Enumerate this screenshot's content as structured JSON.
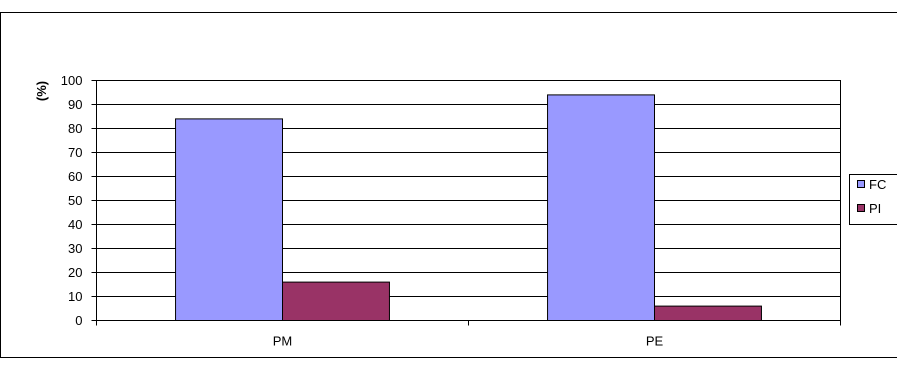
{
  "chart_data": {
    "type": "bar",
    "title": "",
    "xlabel": "",
    "ylabel": "(%)",
    "categories": [
      "PM",
      "PE"
    ],
    "series": [
      {
        "name": "FC",
        "values": [
          84,
          94
        ],
        "color": "#9999ff"
      },
      {
        "name": "PI",
        "values": [
          16,
          6
        ],
        "color": "#993366"
      }
    ],
    "ylim": [
      0,
      100
    ],
    "yticks": [
      "0",
      "10",
      "20",
      "30",
      "40",
      "50",
      "60",
      "70",
      "80",
      "90",
      "100"
    ],
    "grid": true,
    "legend": "right"
  }
}
